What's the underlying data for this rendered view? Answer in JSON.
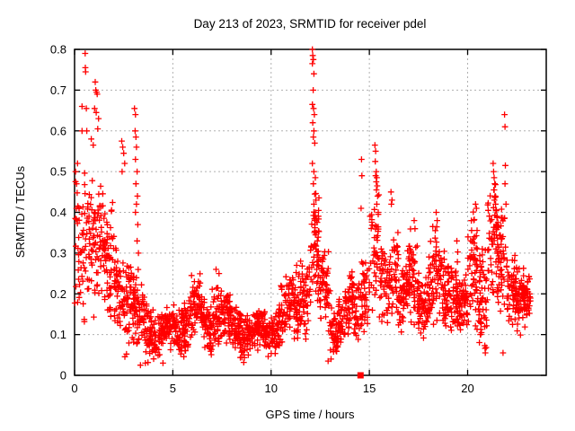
{
  "chart_data": {
    "type": "scatter",
    "title": "Day 213 of 2023, SRMTID for receiver pdel",
    "xlabel": "GPS time / hours",
    "ylabel": "SRMTID / TECUs",
    "xlim": [
      0,
      24
    ],
    "ylim": [
      0,
      0.8
    ],
    "xticks": [
      0,
      5,
      10,
      15,
      20
    ],
    "yticks": [
      0,
      0.1,
      0.2,
      0.3,
      0.4,
      0.5,
      0.6,
      0.7,
      0.8
    ],
    "grid": true,
    "legend": "none",
    "marker": "plus",
    "series_color": "#ff0000",
    "grid_color": "#b0b0b0",
    "border_color": "#000000",
    "background_color": "#ffffff",
    "density_bands": [
      [
        0.0,
        0.5,
        0.1,
        0.48,
        40
      ],
      [
        0.5,
        1.0,
        0.15,
        0.55,
        45
      ],
      [
        1.0,
        1.5,
        0.15,
        0.5,
        50
      ],
      [
        1.5,
        2.0,
        0.1,
        0.42,
        55
      ],
      [
        2.0,
        2.5,
        0.08,
        0.35,
        55
      ],
      [
        2.5,
        3.0,
        0.06,
        0.3,
        55
      ],
      [
        3.0,
        3.5,
        0.04,
        0.25,
        55
      ],
      [
        3.5,
        4.0,
        0.03,
        0.2,
        55
      ],
      [
        4.0,
        4.5,
        0.04,
        0.16,
        50
      ],
      [
        4.5,
        5.0,
        0.04,
        0.17,
        50
      ],
      [
        5.0,
        5.5,
        0.05,
        0.18,
        55
      ],
      [
        5.5,
        6.0,
        0.06,
        0.22,
        55
      ],
      [
        6.0,
        6.5,
        0.06,
        0.25,
        55
      ],
      [
        6.5,
        7.0,
        0.05,
        0.2,
        55
      ],
      [
        7.0,
        7.5,
        0.06,
        0.26,
        55
      ],
      [
        7.5,
        8.0,
        0.05,
        0.2,
        55
      ],
      [
        8.0,
        8.5,
        0.05,
        0.18,
        55
      ],
      [
        8.5,
        9.0,
        0.05,
        0.16,
        55
      ],
      [
        9.0,
        9.5,
        0.04,
        0.15,
        55
      ],
      [
        9.5,
        10.0,
        0.05,
        0.16,
        55
      ],
      [
        10.0,
        10.5,
        0.06,
        0.2,
        55
      ],
      [
        10.5,
        11.0,
        0.07,
        0.24,
        55
      ],
      [
        11.0,
        11.5,
        0.08,
        0.28,
        55
      ],
      [
        11.5,
        12.0,
        0.1,
        0.3,
        50
      ],
      [
        12.0,
        12.5,
        0.15,
        0.45,
        50
      ],
      [
        12.5,
        13.0,
        0.1,
        0.35,
        55
      ],
      [
        13.0,
        13.5,
        0.05,
        0.2,
        55
      ],
      [
        13.5,
        14.0,
        0.07,
        0.2,
        55
      ],
      [
        14.0,
        14.5,
        0.08,
        0.25,
        50
      ],
      [
        14.5,
        15.0,
        0.1,
        0.32,
        45
      ],
      [
        15.0,
        15.5,
        0.12,
        0.45,
        45
      ],
      [
        15.5,
        16.0,
        0.1,
        0.35,
        45
      ],
      [
        16.0,
        16.5,
        0.12,
        0.42,
        50
      ],
      [
        16.5,
        17.0,
        0.1,
        0.3,
        55
      ],
      [
        17.0,
        17.5,
        0.1,
        0.35,
        55
      ],
      [
        17.5,
        18.0,
        0.08,
        0.28,
        55
      ],
      [
        18.0,
        18.5,
        0.1,
        0.38,
        55
      ],
      [
        18.5,
        19.0,
        0.1,
        0.32,
        55
      ],
      [
        19.0,
        19.5,
        0.1,
        0.32,
        55
      ],
      [
        19.5,
        20.0,
        0.08,
        0.26,
        55
      ],
      [
        20.0,
        20.5,
        0.1,
        0.4,
        55
      ],
      [
        20.5,
        21.0,
        0.06,
        0.35,
        55
      ],
      [
        21.0,
        21.5,
        0.15,
        0.5,
        55
      ],
      [
        21.5,
        22.0,
        0.12,
        0.42,
        55
      ],
      [
        22.0,
        22.5,
        0.12,
        0.32,
        55
      ],
      [
        22.5,
        23.0,
        0.08,
        0.28,
        60
      ],
      [
        23.0,
        23.2,
        0.1,
        0.25,
        25
      ]
    ],
    "notable_points": [
      [
        0.05,
        0.5
      ],
      [
        0.1,
        0.47
      ],
      [
        0.15,
        0.52
      ],
      [
        0.38,
        0.66
      ],
      [
        0.38,
        0.6
      ],
      [
        0.54,
        0.79
      ],
      [
        0.55,
        0.755
      ],
      [
        0.56,
        0.745
      ],
      [
        0.6,
        0.655
      ],
      [
        0.62,
        0.6
      ],
      [
        1.05,
        0.72
      ],
      [
        1.08,
        0.7
      ],
      [
        1.12,
        0.695
      ],
      [
        1.15,
        0.69
      ],
      [
        1.02,
        0.655
      ],
      [
        1.1,
        0.645
      ],
      [
        1.22,
        0.63
      ],
      [
        1.18,
        0.605
      ],
      [
        0.85,
        0.58
      ],
      [
        0.95,
        0.565
      ],
      [
        2.4,
        0.575
      ],
      [
        2.45,
        0.56
      ],
      [
        2.5,
        0.545
      ],
      [
        2.55,
        0.52
      ],
      [
        2.42,
        0.5
      ],
      [
        3.05,
        0.655
      ],
      [
        3.1,
        0.64
      ],
      [
        3.08,
        0.6
      ],
      [
        3.12,
        0.585
      ],
      [
        3.15,
        0.56
      ],
      [
        3.1,
        0.53
      ],
      [
        3.18,
        0.5
      ],
      [
        3.12,
        0.47
      ],
      [
        3.2,
        0.44
      ],
      [
        3.15,
        0.42
      ],
      [
        3.1,
        0.4
      ],
      [
        3.22,
        0.37
      ],
      [
        3.18,
        0.33
      ],
      [
        3.25,
        0.3
      ],
      [
        5.95,
        0.245
      ],
      [
        6.1,
        0.23
      ],
      [
        7.2,
        0.26
      ],
      [
        7.35,
        0.25
      ],
      [
        10.5,
        0.22
      ],
      [
        11.3,
        0.27
      ],
      [
        11.5,
        0.28
      ],
      [
        12.1,
        0.8
      ],
      [
        12.12,
        0.785
      ],
      [
        12.15,
        0.775
      ],
      [
        12.1,
        0.765
      ],
      [
        12.18,
        0.74
      ],
      [
        12.14,
        0.7
      ],
      [
        12.1,
        0.665
      ],
      [
        12.16,
        0.655
      ],
      [
        12.2,
        0.64
      ],
      [
        12.12,
        0.62
      ],
      [
        12.18,
        0.6
      ],
      [
        12.15,
        0.585
      ],
      [
        12.22,
        0.57
      ],
      [
        12.1,
        0.52
      ],
      [
        12.18,
        0.5
      ],
      [
        12.25,
        0.485
      ],
      [
        12.15,
        0.47
      ],
      [
        12.22,
        0.445
      ],
      [
        12.28,
        0.43
      ],
      [
        12.18,
        0.42
      ],
      [
        12.25,
        0.4
      ],
      [
        12.3,
        0.385
      ],
      [
        12.22,
        0.37
      ],
      [
        12.3,
        0.35
      ],
      [
        12.35,
        0.33
      ],
      [
        12.28,
        0.31
      ],
      [
        12.35,
        0.295
      ],
      [
        12.4,
        0.28
      ],
      [
        12.32,
        0.26
      ],
      [
        12.42,
        0.245
      ],
      [
        12.38,
        0.23
      ],
      [
        12.45,
        0.215
      ],
      [
        12.4,
        0.2
      ],
      [
        12.48,
        0.185
      ],
      [
        14.6,
        0.53
      ],
      [
        14.62,
        0.49
      ],
      [
        14.58,
        0.41
      ],
      [
        15.28,
        0.565
      ],
      [
        15.32,
        0.55
      ],
      [
        15.3,
        0.525
      ],
      [
        15.35,
        0.5
      ],
      [
        15.32,
        0.49
      ],
      [
        15.38,
        0.485
      ],
      [
        15.35,
        0.475
      ],
      [
        15.4,
        0.465
      ],
      [
        15.36,
        0.455
      ],
      [
        15.42,
        0.44
      ],
      [
        15.38,
        0.42
      ],
      [
        15.45,
        0.4
      ],
      [
        16.1,
        0.45
      ],
      [
        16.15,
        0.43
      ],
      [
        16.12,
        0.42
      ],
      [
        17.28,
        0.38
      ],
      [
        17.32,
        0.36
      ],
      [
        18.4,
        0.4
      ],
      [
        18.45,
        0.38
      ],
      [
        19.45,
        0.33
      ],
      [
        20.4,
        0.42
      ],
      [
        20.45,
        0.41
      ],
      [
        21.3,
        0.52
      ],
      [
        21.32,
        0.5
      ],
      [
        21.35,
        0.485
      ],
      [
        21.38,
        0.47
      ],
      [
        21.33,
        0.455
      ],
      [
        21.4,
        0.44
      ],
      [
        21.36,
        0.43
      ],
      [
        21.42,
        0.42
      ],
      [
        21.88,
        0.64
      ],
      [
        21.9,
        0.61
      ],
      [
        21.92,
        0.515
      ],
      [
        21.9,
        0.47
      ],
      [
        21.95,
        0.42
      ],
      [
        3.35,
        0.025
      ],
      [
        3.6,
        0.03
      ],
      [
        4.5,
        0.03
      ],
      [
        12.9,
        0.035
      ],
      [
        13.05,
        0.04
      ],
      [
        20.9,
        0.055
      ],
      [
        21.8,
        0.055
      ]
    ],
    "square_marker_points": [
      [
        14.55,
        0.0
      ]
    ]
  }
}
